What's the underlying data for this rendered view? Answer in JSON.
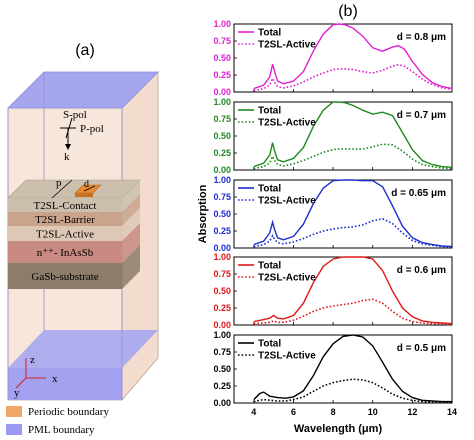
{
  "panel_a": {
    "tag": "(a)",
    "pol_s": "S-pol",
    "pol_p": "P-pol",
    "k_label": "k",
    "p_label": "p",
    "d_label": "d",
    "layers": [
      {
        "label": "T2SL-Contact",
        "color": "#cdbfae"
      },
      {
        "label": "T2SL-Barrier",
        "color": "#c9a38c"
      },
      {
        "label": "T2SL-Active",
        "color": "#dcc8b4"
      },
      {
        "label": "n⁺⁺- InAsSb",
        "color": "#c98a82"
      },
      {
        "label": "GaSb-substrate",
        "color": "#8d7d68"
      }
    ],
    "axis_z": "z",
    "axis_y": "y",
    "axis_x": "x",
    "legend": [
      {
        "label": "Periodic boundary",
        "color": "#f0a868"
      },
      {
        "label": "PML boundary",
        "color": "#9a9af2"
      }
    ],
    "colors": {
      "box_fill": "#f7e6da",
      "top_face": "#a6a6ef",
      "patch": "#e58a32"
    }
  },
  "panel_b": {
    "tag": "(b)"
  },
  "chart_data": {
    "type": "line",
    "xlabel": "Wavelength (μm)",
    "ylabel": "Absorption",
    "xlim": [
      3,
      14
    ],
    "xticks": [
      4,
      6,
      8,
      10,
      12,
      14
    ],
    "ylim": [
      0,
      1
    ],
    "yticks": [
      "0.00",
      "0.25",
      "0.50",
      "0.75",
      "1.00"
    ],
    "legend_position": "top-left",
    "panels": [
      {
        "thickness_label": "d = 0.8 μm",
        "color": "#e020d0",
        "x": [
          4,
          4.5,
          4.8,
          4.95,
          5.05,
          5.2,
          5.5,
          6,
          6.5,
          7,
          7.5,
          8,
          8.3,
          8.6,
          9,
          9.5,
          10,
          10.5,
          11,
          11.3,
          11.6,
          12,
          12.5,
          13,
          13.5,
          14
        ],
        "series": [
          {
            "name": "Total",
            "style": "solid",
            "values": [
              0.05,
              0.1,
              0.22,
              0.41,
              0.3,
              0.16,
              0.12,
              0.16,
              0.3,
              0.6,
              0.85,
              0.99,
              1.0,
              0.99,
              0.94,
              0.82,
              0.65,
              0.6,
              0.66,
              0.68,
              0.63,
              0.45,
              0.26,
              0.14,
              0.08,
              0.05
            ]
          },
          {
            "name": "T2SL-Active",
            "style": "dotted",
            "values": [
              0.02,
              0.05,
              0.1,
              0.2,
              0.14,
              0.08,
              0.06,
              0.09,
              0.15,
              0.22,
              0.28,
              0.33,
              0.34,
              0.34,
              0.33,
              0.3,
              0.28,
              0.32,
              0.38,
              0.4,
              0.38,
              0.3,
              0.19,
              0.11,
              0.06,
              0.04
            ]
          }
        ]
      },
      {
        "thickness_label": "d = 0.7 μm",
        "color": "#1f8a1f",
        "x": [
          4,
          4.5,
          4.8,
          4.95,
          5.05,
          5.2,
          5.5,
          6,
          6.5,
          7,
          7.5,
          8,
          8.3,
          8.6,
          9,
          9.5,
          10,
          10.5,
          11,
          11.5,
          12,
          12.5,
          13,
          13.5,
          14
        ],
        "series": [
          {
            "name": "Total",
            "style": "solid",
            "values": [
              0.05,
              0.1,
              0.22,
              0.4,
              0.28,
              0.15,
              0.12,
              0.17,
              0.33,
              0.64,
              0.88,
              1.0,
              1.0,
              0.99,
              0.95,
              0.88,
              0.82,
              0.85,
              0.8,
              0.55,
              0.3,
              0.14,
              0.08,
              0.05,
              0.04
            ]
          },
          {
            "name": "T2SL-Active",
            "style": "dotted",
            "values": [
              0.02,
              0.05,
              0.1,
              0.2,
              0.14,
              0.08,
              0.06,
              0.09,
              0.14,
              0.2,
              0.26,
              0.3,
              0.31,
              0.31,
              0.31,
              0.31,
              0.34,
              0.38,
              0.37,
              0.28,
              0.16,
              0.08,
              0.05,
              0.03,
              0.02
            ]
          }
        ]
      },
      {
        "thickness_label": "d = 0.65 μm",
        "color": "#1e2ecc",
        "x": [
          4,
          4.5,
          4.8,
          4.95,
          5.05,
          5.2,
          5.5,
          6,
          6.5,
          7,
          7.5,
          8,
          8.5,
          9,
          9.5,
          10,
          10.5,
          11,
          11.5,
          12,
          12.5,
          13,
          13.5,
          14
        ],
        "series": [
          {
            "name": "Total",
            "style": "solid",
            "values": [
              0.05,
              0.1,
              0.22,
              0.38,
              0.27,
              0.15,
              0.12,
              0.17,
              0.35,
              0.65,
              0.88,
              0.99,
              1.0,
              1.0,
              0.99,
              0.99,
              0.9,
              0.62,
              0.32,
              0.15,
              0.08,
              0.05,
              0.03,
              0.02
            ]
          },
          {
            "name": "T2SL-Active",
            "style": "dotted",
            "values": [
              0.02,
              0.05,
              0.1,
              0.18,
              0.13,
              0.08,
              0.06,
              0.09,
              0.14,
              0.2,
              0.25,
              0.28,
              0.3,
              0.31,
              0.34,
              0.4,
              0.43,
              0.36,
              0.22,
              0.11,
              0.06,
              0.04,
              0.02,
              0.02
            ]
          }
        ]
      },
      {
        "thickness_label": "d = 0.6 μm",
        "color": "#e01818",
        "x": [
          4,
          4.5,
          4.8,
          5.0,
          5.2,
          5.5,
          6,
          6.5,
          7,
          7.5,
          8,
          8.5,
          9,
          9.5,
          10,
          10.5,
          11,
          11.5,
          12,
          12.5,
          13,
          13.5,
          14
        ],
        "series": [
          {
            "name": "Total",
            "style": "solid",
            "values": [
              0.05,
              0.08,
              0.1,
              0.14,
              0.1,
              0.09,
              0.14,
              0.32,
              0.62,
              0.86,
              0.97,
              1.0,
              1.0,
              1.0,
              0.97,
              0.8,
              0.5,
              0.25,
              0.12,
              0.06,
              0.04,
              0.03,
              0.02
            ]
          },
          {
            "name": "T2SL-Active",
            "style": "dotted",
            "values": [
              0.02,
              0.03,
              0.04,
              0.06,
              0.04,
              0.04,
              0.07,
              0.13,
              0.2,
              0.25,
              0.28,
              0.3,
              0.32,
              0.36,
              0.38,
              0.32,
              0.2,
              0.1,
              0.05,
              0.03,
              0.02,
              0.02,
              0.01
            ]
          }
        ]
      },
      {
        "thickness_label": "d = 0.5 μm",
        "color": "#000000",
        "x": [
          4,
          4.3,
          4.5,
          4.8,
          5.2,
          5.6,
          6,
          6.5,
          7,
          7.5,
          8,
          8.5,
          9,
          9.5,
          10,
          10.5,
          11,
          11.5,
          12,
          12.5,
          13,
          13.5,
          14
        ],
        "series": [
          {
            "name": "Total",
            "style": "solid",
            "values": [
              0.05,
              0.14,
              0.16,
              0.1,
              0.08,
              0.07,
              0.09,
              0.18,
              0.4,
              0.68,
              0.87,
              0.98,
              1.0,
              0.97,
              0.84,
              0.6,
              0.35,
              0.17,
              0.08,
              0.04,
              0.03,
              0.02,
              0.02
            ]
          },
          {
            "name": "T2SL-Active",
            "style": "dotted",
            "values": [
              0.02,
              0.04,
              0.05,
              0.04,
              0.03,
              0.03,
              0.05,
              0.09,
              0.17,
              0.25,
              0.3,
              0.33,
              0.35,
              0.34,
              0.3,
              0.22,
              0.13,
              0.07,
              0.04,
              0.02,
              0.01,
              0.01,
              0.01
            ]
          }
        ]
      }
    ]
  }
}
